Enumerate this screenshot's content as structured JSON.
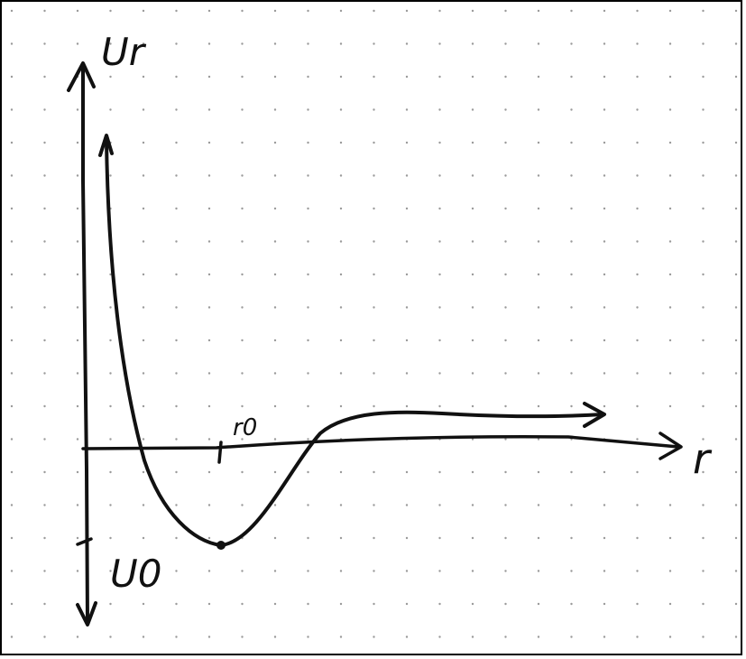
{
  "labels": {
    "y_axis": "Ur",
    "x_axis": "r",
    "tick_r0": "r0",
    "depth": "U0"
  },
  "colors": {
    "ink": "#111111",
    "dot_grid": "#9a9a9a",
    "frame": "#000000",
    "paper": "#ffffff"
  }
}
